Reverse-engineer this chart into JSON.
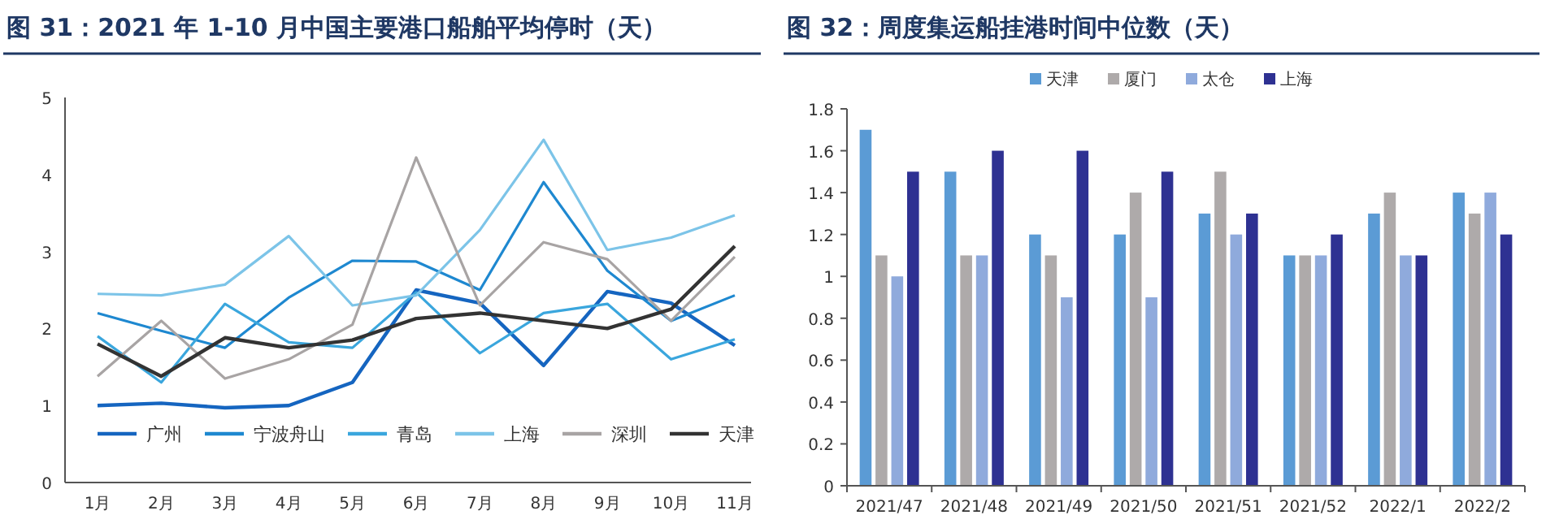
{
  "chart_data": [
    {
      "type": "line",
      "title": "图 31：2021 年 1-10 月中国主要港口船舶平均停时（天）",
      "categories": [
        "1月",
        "2月",
        "3月",
        "4月",
        "5月",
        "6月",
        "7月",
        "8月",
        "9月",
        "10月",
        "11月"
      ],
      "ylim": [
        0,
        5
      ],
      "yticks": [
        0,
        1,
        2,
        3,
        4,
        5
      ],
      "legend": "bottom",
      "grid": false,
      "marker": "none",
      "line_style": "solid",
      "series": [
        {
          "name": "广州",
          "color": "#1565c0",
          "values": [
            1.0,
            1.03,
            0.97,
            1.0,
            1.3,
            2.5,
            2.33,
            1.52,
            2.48,
            2.33,
            1.78
          ]
        },
        {
          "name": "宁波舟山",
          "color": "#1e88d0",
          "values": [
            2.2,
            1.97,
            1.75,
            2.4,
            2.88,
            2.87,
            2.5,
            3.9,
            2.75,
            2.1,
            2.43
          ]
        },
        {
          "name": "青岛",
          "color": "#3aa6dd",
          "values": [
            1.9,
            1.3,
            2.32,
            1.82,
            1.75,
            2.47,
            1.68,
            2.2,
            2.32,
            1.6,
            1.86
          ]
        },
        {
          "name": "上海",
          "color": "#7cc4e8",
          "values": [
            2.45,
            2.43,
            2.57,
            3.2,
            2.3,
            2.43,
            3.28,
            4.45,
            3.02,
            3.18,
            3.47
          ]
        },
        {
          "name": "深圳",
          "color": "#a8a4a4",
          "values": [
            1.38,
            2.1,
            1.35,
            1.6,
            2.05,
            4.22,
            2.3,
            3.12,
            2.9,
            2.1,
            2.93
          ]
        },
        {
          "name": "天津",
          "color": "#333333",
          "values": [
            1.8,
            1.38,
            1.88,
            1.75,
            1.85,
            2.13,
            2.2,
            2.1,
            2.0,
            2.25,
            3.07
          ]
        }
      ]
    },
    {
      "type": "bar",
      "title": "图 32：周度集运船挂港时间中位数（天）",
      "categories": [
        "2021/47",
        "2021/48",
        "2021/49",
        "2021/50",
        "2021/51",
        "2021/52",
        "2022/1",
        "2022/2"
      ],
      "ylim": [
        0,
        1.8
      ],
      "yticks": [
        0,
        0.2,
        0.4,
        0.6,
        0.8,
        1,
        1.2,
        1.4,
        1.6,
        1.8
      ],
      "legend": "top",
      "grid": false,
      "series": [
        {
          "name": "天津",
          "color": "#5b9bd5",
          "values": [
            1.7,
            1.5,
            1.2,
            1.2,
            1.3,
            1.1,
            1.3,
            1.4
          ]
        },
        {
          "name": "厦门",
          "color": "#aeaaaa",
          "values": [
            1.1,
            1.1,
            1.1,
            1.4,
            1.5,
            1.1,
            1.4,
            1.3
          ]
        },
        {
          "name": "太仓",
          "color": "#8faadc",
          "values": [
            1.0,
            1.1,
            0.9,
            0.9,
            1.2,
            1.1,
            1.1,
            1.4
          ]
        },
        {
          "name": "上海",
          "color": "#2e3192",
          "values": [
            1.5,
            1.6,
            1.6,
            1.5,
            1.3,
            1.2,
            1.1,
            1.2
          ]
        }
      ]
    }
  ]
}
